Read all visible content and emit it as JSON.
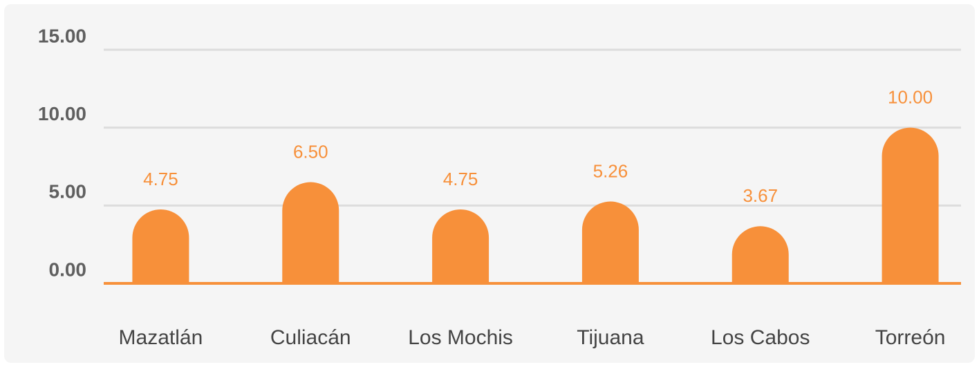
{
  "chart_data": {
    "type": "bar",
    "categories": [
      "Mazatlán",
      "Culiacán",
      "Los Mochis",
      "Tijuana",
      "Los Cabos",
      "Torreón"
    ],
    "values": [
      4.75,
      6.5,
      4.75,
      5.26,
      3.67,
      10
    ],
    "value_labels": [
      "4.75",
      "6.50",
      "4.75",
      "5.26",
      "3.67",
      "10.00"
    ],
    "color": "#f7903a",
    "ylim": [
      0,
      15
    ],
    "yticks": [
      {
        "value": 0,
        "label": "0.00"
      },
      {
        "value": 5,
        "label": "5.00"
      },
      {
        "value": 10,
        "label": "10.00"
      },
      {
        "value": 15,
        "label": "15.00"
      }
    ],
    "grid": true
  }
}
